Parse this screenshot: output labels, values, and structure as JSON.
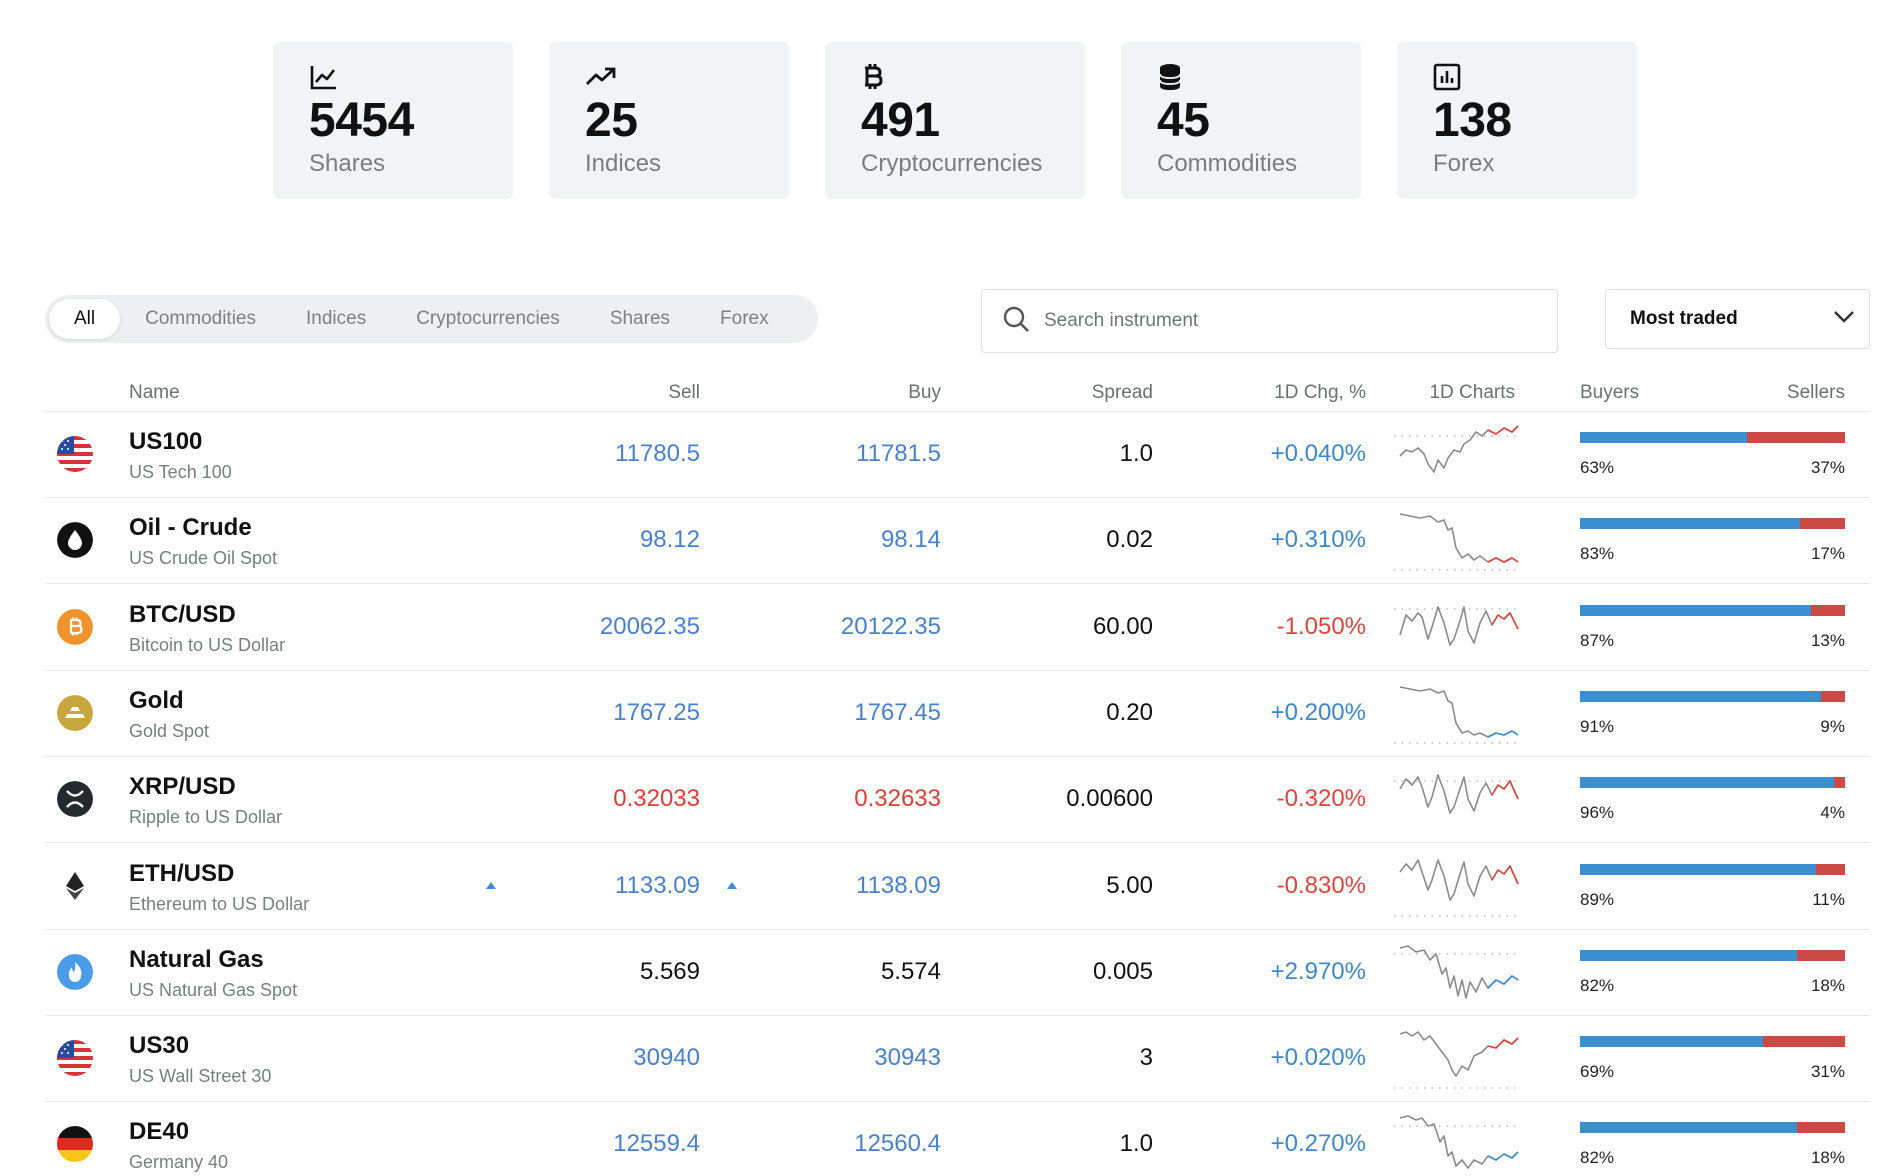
{
  "stats": [
    {
      "icon": "line-chart-icon",
      "value": "5454",
      "label": "Shares"
    },
    {
      "icon": "trending-up-icon",
      "value": "25",
      "label": "Indices"
    },
    {
      "icon": "bitcoin-icon",
      "value": "491",
      "label": "Cryptocurrencies"
    },
    {
      "icon": "database-icon",
      "value": "45",
      "label": "Commodities"
    },
    {
      "icon": "bar-chart-icon",
      "value": "138",
      "label": "Forex"
    }
  ],
  "tabs": [
    "All",
    "Commodities",
    "Indices",
    "Cryptocurrencies",
    "Shares",
    "Forex"
  ],
  "active_tab": "All",
  "search": {
    "placeholder": "Search instrument"
  },
  "sort": {
    "selected": "Most traded"
  },
  "columns": {
    "name": "Name",
    "sell": "Sell",
    "buy": "Buy",
    "spread": "Spread",
    "change": "1D Chg, %",
    "charts": "1D Charts",
    "buyers": "Buyers",
    "sellers": "Sellers"
  },
  "colors": {
    "up": "#3b8fce",
    "down": "#cc4a45",
    "price_blue": "#4a7fc9",
    "price_red": "#d6413b"
  },
  "rows": [
    {
      "icon": "us-flag-icon",
      "name": "US100",
      "desc": "US Tech 100",
      "sell": "11780.5",
      "buy": "11781.5",
      "spread": "1.0",
      "change": "+0.040%",
      "price_color": "blue",
      "chg_dir": "pos",
      "buyers": "63%",
      "sellers": "37%",
      "buyers_frac": 0.63,
      "spark_color": "red"
    },
    {
      "icon": "oil-drop-icon",
      "name": "Oil - Crude",
      "desc": "US Crude Oil Spot",
      "sell": "98.12",
      "buy": "98.14",
      "spread": "0.02",
      "change": "+0.310%",
      "price_color": "blue",
      "chg_dir": "pos",
      "buyers": "83%",
      "sellers": "17%",
      "buyers_frac": 0.83,
      "spark_color": "red"
    },
    {
      "icon": "bitcoin-coin-icon",
      "name": "BTC/USD",
      "desc": "Bitcoin to US Dollar",
      "sell": "20062.35",
      "buy": "20122.35",
      "spread": "60.00",
      "change": "-1.050%",
      "price_color": "blue",
      "chg_dir": "neg",
      "buyers": "87%",
      "sellers": "13%",
      "buyers_frac": 0.87,
      "spark_color": "red"
    },
    {
      "icon": "gold-bar-icon",
      "name": "Gold",
      "desc": "Gold Spot",
      "sell": "1767.25",
      "buy": "1767.45",
      "spread": "0.20",
      "change": "+0.200%",
      "price_color": "blue",
      "chg_dir": "pos",
      "buyers": "91%",
      "sellers": "9%",
      "buyers_frac": 0.91,
      "spark_color": "blue"
    },
    {
      "icon": "xrp-icon",
      "name": "XRP/USD",
      "desc": "Ripple to US Dollar",
      "sell": "0.32033",
      "buy": "0.32633",
      "spread": "0.00600",
      "change": "-0.320%",
      "price_color": "red",
      "chg_dir": "neg",
      "buyers": "96%",
      "sellers": "4%",
      "buyers_frac": 0.96,
      "spark_color": "red"
    },
    {
      "icon": "ethereum-icon",
      "name": "ETH/USD",
      "desc": "Ethereum to US Dollar",
      "sell": "1133.09",
      "buy": "1138.09",
      "spread": "5.00",
      "change": "-0.830%",
      "price_color": "blue",
      "chg_dir": "neg",
      "buyers": "89%",
      "sellers": "11%",
      "buyers_frac": 0.89,
      "spark_color": "red",
      "up_arrow": true
    },
    {
      "icon": "flame-icon",
      "name": "Natural Gas",
      "desc": "US Natural Gas Spot",
      "sell": "5.569",
      "buy": "5.574",
      "spread": "0.005",
      "change": "+2.970%",
      "price_color": "black",
      "chg_dir": "pos",
      "buyers": "82%",
      "sellers": "18%",
      "buyers_frac": 0.82,
      "spark_color": "blue"
    },
    {
      "icon": "us-flag-icon",
      "name": "US30",
      "desc": "US Wall Street 30",
      "sell": "30940",
      "buy": "30943",
      "spread": "3",
      "change": "+0.020%",
      "price_color": "blue",
      "chg_dir": "pos",
      "buyers": "69%",
      "sellers": "31%",
      "buyers_frac": 0.69,
      "spark_color": "red"
    },
    {
      "icon": "germany-flag-icon",
      "name": "DE40",
      "desc": "Germany 40",
      "sell": "12559.4",
      "buy": "12560.4",
      "spread": "1.0",
      "change": "+0.270%",
      "price_color": "blue",
      "chg_dir": "pos",
      "buyers": "82%",
      "sellers": "18%",
      "buyers_frac": 0.82,
      "spark_color": "blue"
    }
  ]
}
